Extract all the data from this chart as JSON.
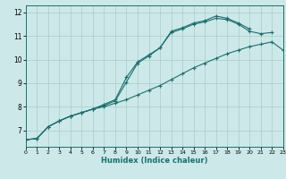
{
  "xlabel": "Humidex (Indice chaleur)",
  "x_values": [
    0,
    1,
    2,
    3,
    4,
    5,
    6,
    7,
    8,
    9,
    10,
    11,
    12,
    13,
    14,
    15,
    16,
    17,
    18,
    19,
    20,
    21,
    22,
    23
  ],
  "line1": [
    6.6,
    6.65,
    7.15,
    7.4,
    7.6,
    7.75,
    7.9,
    8.05,
    8.25,
    9.05,
    9.85,
    10.15,
    10.5,
    11.15,
    11.3,
    11.5,
    11.6,
    11.75,
    11.7,
    11.5,
    11.2,
    11.1,
    11.15,
    null
  ],
  "line2": [
    6.6,
    6.65,
    7.15,
    7.4,
    7.6,
    7.75,
    7.9,
    8.1,
    8.3,
    9.25,
    9.9,
    10.2,
    10.5,
    11.2,
    11.35,
    11.55,
    11.65,
    11.85,
    11.75,
    11.55,
    11.3,
    null,
    null,
    null
  ],
  "line3": [
    6.6,
    6.65,
    7.15,
    7.4,
    7.6,
    7.75,
    7.9,
    8.0,
    8.15,
    8.3,
    8.5,
    8.7,
    8.9,
    9.15,
    9.4,
    9.65,
    9.85,
    10.05,
    10.25,
    10.4,
    10.55,
    10.65,
    10.75,
    10.4
  ],
  "bg_color": "#cde8e8",
  "grid_color": "#a8cccc",
  "line_color": "#1a7070",
  "ylim": [
    6.3,
    12.3
  ],
  "xlim": [
    0,
    23
  ],
  "yticks": [
    7,
    8,
    9,
    10,
    11,
    12
  ],
  "xticks": [
    0,
    1,
    2,
    3,
    4,
    5,
    6,
    7,
    8,
    9,
    10,
    11,
    12,
    13,
    14,
    15,
    16,
    17,
    18,
    19,
    20,
    21,
    22,
    23
  ]
}
